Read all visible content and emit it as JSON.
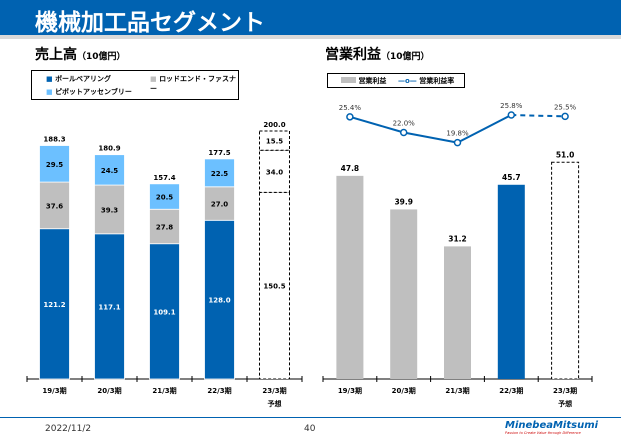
{
  "title": "機械加工品セグメント",
  "left": {
    "heading": "売上高",
    "unit": "（10億円）"
  },
  "right": {
    "heading": "営業利益",
    "unit": "（10億円）"
  },
  "footer": {
    "date": "2022/11/2",
    "page": "40",
    "logo": "MinebeaMitsumi",
    "tagline": "Passion to Create Value through Difference"
  },
  "chart_data": [
    {
      "type": "bar",
      "stacked": true,
      "categories": [
        "19/3期",
        "20/3期",
        "21/3期",
        "22/3期",
        "23/3期"
      ],
      "forecast_label": "予想",
      "forecast_index": 4,
      "series": [
        {
          "name": "ボールベアリング",
          "color": "#0062b1",
          "values": [
            121.2,
            117.1,
            109.1,
            128.0,
            150.5
          ]
        },
        {
          "name": "ロッドエンド・ファスナー",
          "color": "#bfbfbf",
          "values": [
            37.6,
            39.3,
            27.8,
            27.0,
            34.0
          ]
        },
        {
          "name": "ピボットアッセンブリー",
          "color": "#6cc0ff",
          "values": [
            29.5,
            24.5,
            20.5,
            22.5,
            15.5
          ]
        }
      ],
      "totals": [
        "188.3",
        "180.9",
        "157.4",
        "177.5",
        "200.0"
      ]
    },
    {
      "type": "bar+line",
      "categories": [
        "19/3期",
        "20/3期",
        "21/3期",
        "22/3期",
        "23/3期"
      ],
      "forecast_label": "予想",
      "forecast_index": 4,
      "bar_series": {
        "name": "営業利益",
        "color": "#bfbfbf",
        "highlight_color": "#0062b1",
        "values": [
          47.8,
          39.9,
          31.2,
          45.7,
          51.0
        ]
      },
      "line_series": {
        "name": "営業利益率",
        "color": "#0062b1",
        "values": [
          25.4,
          22.0,
          19.8,
          25.8,
          25.5
        ],
        "labels": [
          "25.4%",
          "22.0%",
          "19.8%",
          "25.8%",
          "25.5%"
        ]
      }
    }
  ]
}
